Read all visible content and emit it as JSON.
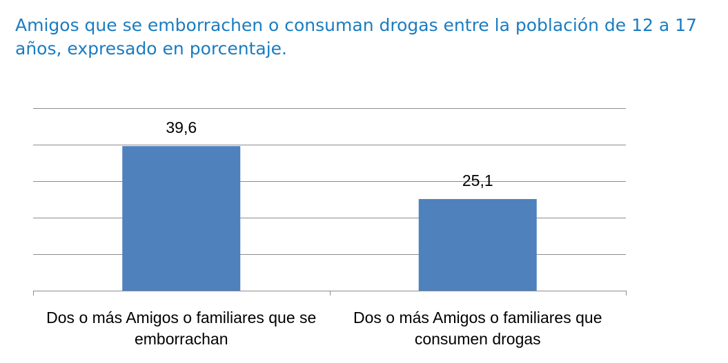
{
  "chart_data": {
    "type": "bar",
    "title": "Amigos que se emborrachen o consuman drogas entre la población de 12 a 17 años, expresado en porcentaje.",
    "categories": [
      [
        "Dos o más Amigos o familiares que se",
        "emborrachan"
      ],
      [
        "Dos o más Amigos o familiares que",
        "consumen drogas"
      ]
    ],
    "values": [
      39.6,
      25.1
    ],
    "data_labels": [
      "39,6",
      "25,1"
    ],
    "xlabel": "",
    "ylabel": "",
    "ylim": [
      0,
      50
    ],
    "grid": true,
    "legend": "none",
    "bar_color": "#4f81bd",
    "grid_color": "#8c8c8c",
    "title_color": "#1a7cc1"
  }
}
